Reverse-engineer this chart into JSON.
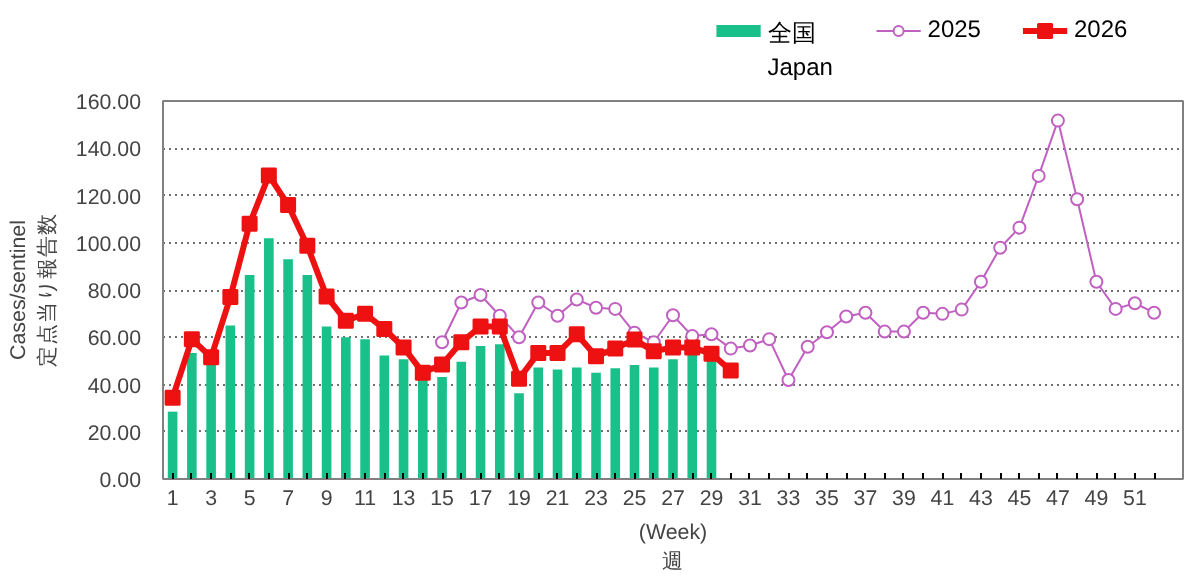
{
  "chart_data": {
    "type": "bar",
    "x": [
      1,
      2,
      3,
      4,
      5,
      6,
      7,
      8,
      9,
      10,
      11,
      12,
      13,
      14,
      15,
      16,
      17,
      18,
      19,
      20,
      21,
      22,
      23,
      24,
      25,
      26,
      27,
      28,
      29,
      30,
      31,
      32,
      33,
      34,
      35,
      36,
      37,
      38,
      39,
      40,
      41,
      42,
      43,
      44,
      45,
      46,
      47,
      48,
      49,
      50,
      51,
      52
    ],
    "series": [
      {
        "name": "全国\nJapan",
        "color": "#19c08a",
        "values": [
          28.5,
          53.3,
          49,
          65,
          86.4,
          101.9,
          93,
          86.4,
          64.5,
          60,
          59.2,
          52.3,
          50.7,
          41.9,
          43.2,
          49.6,
          56.3,
          57,
          36.3,
          47.2,
          46.4,
          47.2,
          45,
          46.9,
          48.3,
          47.2,
          50.7,
          52.5,
          50.4,
          null,
          null,
          null,
          null,
          null,
          null,
          null,
          null,
          null,
          null,
          null,
          null,
          null,
          null,
          null,
          null,
          null,
          null,
          null,
          null,
          null,
          null,
          null
        ]
      },
      {
        "name": "2025",
        "type": "line",
        "color": "#c060c0",
        "marker": "circle",
        "values": [
          null,
          null,
          null,
          null,
          null,
          null,
          null,
          null,
          null,
          null,
          null,
          null,
          null,
          null,
          57.9,
          74.7,
          77.9,
          69.1,
          60,
          74.7,
          69.1,
          76,
          72.5,
          72,
          61.9,
          57.9,
          69.3,
          60.5,
          61.3,
          55.2,
          56.5,
          59.2,
          41.9,
          56,
          62.1,
          68.8,
          70.4,
          62.4,
          62.4,
          70.4,
          69.9,
          71.7,
          83.5,
          97.9,
          106.4,
          128.3,
          151.7,
          118.4,
          83.5,
          72,
          74.4,
          70.4
        ]
      },
      {
        "name": "2026",
        "type": "line",
        "color": "#ee1111",
        "marker": "square",
        "values": [
          34.4,
          59.2,
          51.5,
          77,
          108,
          128.5,
          116,
          98.7,
          77.3,
          67,
          69.9,
          63.5,
          55.7,
          45,
          48.5,
          57.9,
          64.5,
          64.5,
          42.4,
          53.3,
          53.3,
          61.3,
          52,
          55.2,
          59,
          54.1,
          55.7,
          55.7,
          53,
          45.9,
          null,
          null,
          null,
          null,
          null,
          null,
          null,
          null,
          null,
          null,
          null,
          null,
          null,
          null,
          null,
          null,
          null,
          null,
          null,
          null,
          null,
          null
        ]
      }
    ],
    "xlabel": "(Week)\n週",
    "ylabel": "Cases/sentinel\n定点当り報告数",
    "xlim": [
      0.5,
      53.5
    ],
    "xticks": [
      1,
      {
        "value": 2,
        "label": null
      },
      3,
      {
        "value": 4,
        "label": null
      },
      5,
      {
        "value": 6,
        "label": null
      },
      7,
      {
        "value": 8,
        "label": null
      },
      9,
      {
        "value": 10,
        "label": null
      },
      11,
      {
        "value": 12,
        "label": null
      },
      13,
      {
        "value": 14,
        "label": null
      },
      15,
      {
        "value": 16,
        "label": null
      },
      17,
      {
        "value": 18,
        "label": null
      },
      19,
      {
        "value": 20,
        "label": null
      },
      21,
      {
        "value": 22,
        "label": null
      },
      23,
      {
        "value": 24,
        "label": null
      },
      25,
      {
        "value": 26,
        "label": null
      },
      27,
      {
        "value": 28,
        "label": null
      },
      29,
      {
        "value": 30,
        "label": null
      },
      31,
      {
        "value": 32,
        "label": null
      },
      33,
      {
        "value": 34,
        "label": null
      },
      35,
      {
        "value": 36,
        "label": null
      },
      37,
      {
        "value": 38,
        "label": null
      },
      39,
      {
        "value": 40,
        "label": null
      },
      41,
      {
        "value": 42,
        "label": null
      },
      43,
      {
        "value": 44,
        "label": null
      },
      45,
      {
        "value": 46,
        "label": null
      },
      47,
      {
        "value": 48,
        "label": null
      },
      49,
      {
        "value": 50,
        "label": null
      },
      51,
      {
        "value": 52,
        "label": null
      }
    ],
    "ylim": [
      0,
      160
    ],
    "yticks": [
      {
        "value": 0,
        "label": "0.00"
      },
      {
        "value": 20,
        "label": "20.00"
      },
      {
        "value": 40,
        "label": "40.00"
      },
      {
        "value": 60,
        "label": "60.00"
      },
      {
        "value": 80,
        "label": "80.00"
      },
      {
        "value": 100,
        "label": "100.00"
      },
      {
        "value": 120,
        "label": "120.00"
      },
      {
        "value": 140,
        "label": "140.00"
      },
      {
        "value": 160,
        "label": "160.00"
      }
    ],
    "grid": "y",
    "legend": "top right",
    "line_style": "solid"
  }
}
